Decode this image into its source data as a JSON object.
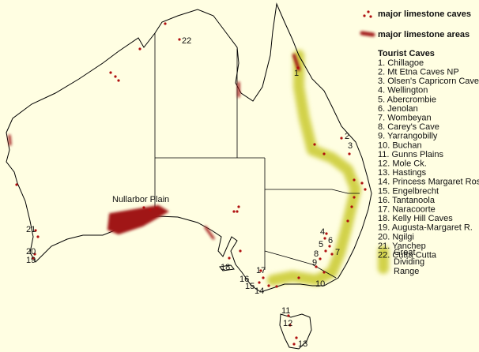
{
  "legend": {
    "caves": "major limestone caves",
    "areas": "major limestone areas"
  },
  "list": {
    "title": "Tourist Caves",
    "items": [
      "1. Chillagoe",
      "2. Mt Etna Caves NP",
      "3. Olsen's Capricorn Caves",
      "4. Wellington",
      "5. Abercrombie",
      "6. Jenolan",
      "7. Wombeyan",
      "8. Carey's Cave",
      "9. Yarrangobilly",
      "10. Buchan",
      "11. Gunns Plains",
      "12. Mole Ck.",
      "13. Hastings",
      "14. Princess Margaret Rose",
      "15. Engelbrecht",
      "16. Tantanoola",
      "17. Naracoorte",
      "18. Kelly Hill Caves",
      "19. Augusta-Margaret R.",
      "20. Ngilgi",
      "21. Yanchep",
      "22. Cutta Cutta"
    ]
  },
  "map": {
    "cave_numbers": [
      "1",
      "2",
      "3",
      "4",
      "5",
      "6",
      "7",
      "8",
      "9",
      "10",
      "11",
      "12",
      "13",
      "14",
      "15",
      "16",
      "17",
      "18",
      "19",
      "20",
      "21",
      "22"
    ],
    "nullarbor": "Nullarbor Plain",
    "range": [
      "Great",
      "Dividing",
      "Range"
    ]
  }
}
